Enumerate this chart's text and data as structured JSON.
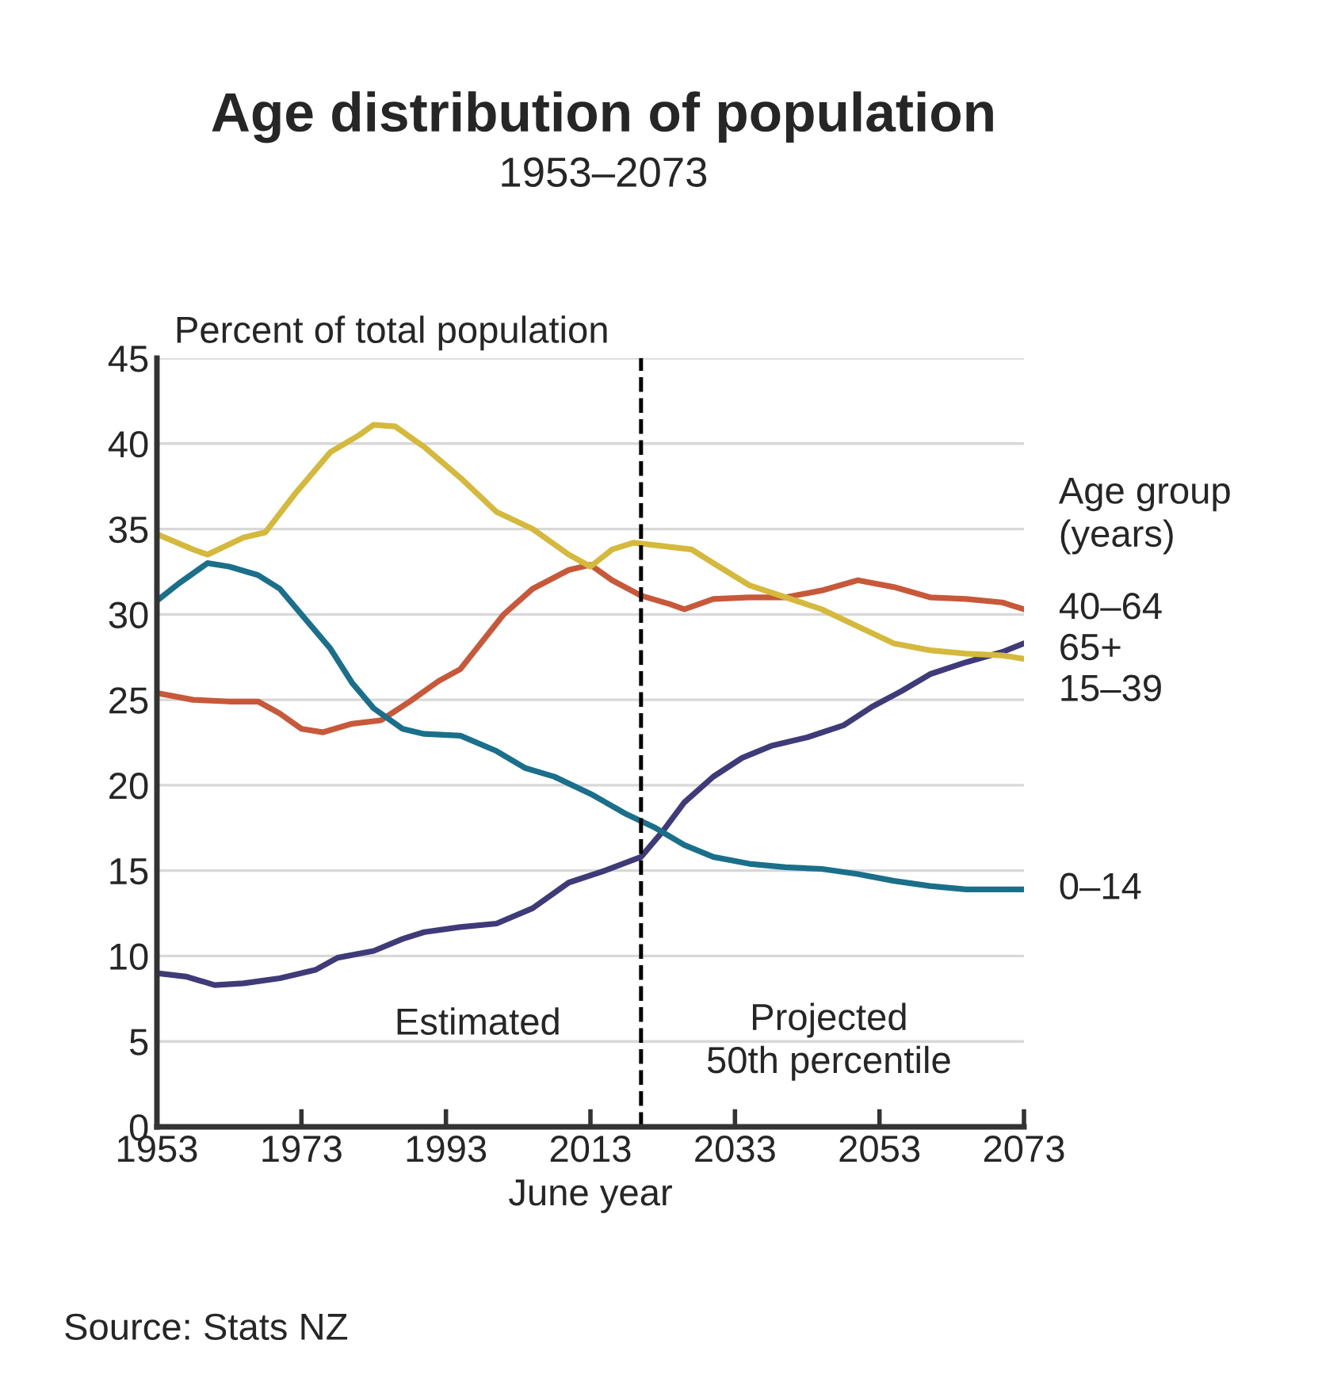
{
  "chart_data": {
    "type": "line",
    "title": "Age distribution of population",
    "subtitle": "1953–2073",
    "ylabel": "Percent of total population",
    "xlabel": "June year",
    "legend_title": "Age group\n(years)",
    "legend": "right",
    "grid": "y",
    "line_style": "solid",
    "xlim": [
      1953,
      2073
    ],
    "xticks": [
      1953,
      1973,
      1993,
      2013,
      2033,
      2053,
      2073
    ],
    "ylim": [
      0,
      45
    ],
    "yticks": [
      0,
      5,
      10,
      15,
      20,
      25,
      30,
      35,
      40,
      45
    ],
    "ref_lines": [
      {
        "axis": "x",
        "value": 2020,
        "color": "#000000",
        "line_style": "dashed"
      }
    ],
    "annotations": [
      "Estimated",
      "Projected\n50th percentile",
      "Source: Stats NZ"
    ],
    "series": [
      {
        "name": "40–64",
        "color": "#c8583a",
        "x": [
          1953,
          1958,
          1963,
          1967,
          1970,
          1973,
          1976,
          1980,
          1984,
          1988,
          1992,
          1995,
          1998,
          2001,
          2005,
          2010,
          2013,
          2016,
          2020,
          2024,
          2026,
          2030,
          2035,
          2040,
          2045,
          2050,
          2055,
          2060,
          2065,
          2070,
          2073
        ],
        "values": [
          25.4,
          25.0,
          24.9,
          24.9,
          24.2,
          23.3,
          23.1,
          23.6,
          23.8,
          24.9,
          26.1,
          26.8,
          28.4,
          30.0,
          31.5,
          32.6,
          32.9,
          32.0,
          31.1,
          30.6,
          30.3,
          30.9,
          31.0,
          31.0,
          31.4,
          32.0,
          31.6,
          31.0,
          30.9,
          30.7,
          30.3
        ]
      },
      {
        "name": "65+",
        "color": "#3f3a78",
        "x": [
          1953,
          1957,
          1961,
          1965,
          1970,
          1975,
          1978,
          1983,
          1987,
          1990,
          1995,
          2000,
          2005,
          2010,
          2015,
          2020,
          2023,
          2026,
          2030,
          2034,
          2038,
          2043,
          2048,
          2052,
          2056,
          2060,
          2065,
          2070,
          2073
        ],
        "values": [
          9.0,
          8.8,
          8.3,
          8.4,
          8.7,
          9.2,
          9.9,
          10.3,
          11.0,
          11.4,
          11.7,
          11.9,
          12.8,
          14.3,
          15.0,
          15.8,
          17.3,
          19.0,
          20.5,
          21.6,
          22.3,
          22.8,
          23.5,
          24.6,
          25.5,
          26.5,
          27.2,
          27.8,
          28.3
        ]
      },
      {
        "name": "15–39",
        "color": "#d4b93c",
        "x": [
          1953,
          1958,
          1960,
          1965,
          1968,
          1972,
          1977,
          1981,
          1983,
          1986,
          1990,
          1995,
          2000,
          2005,
          2010,
          2013,
          2016,
          2019,
          2023,
          2027,
          2030,
          2035,
          2040,
          2045,
          2050,
          2055,
          2060,
          2065,
          2070,
          2073
        ],
        "values": [
          34.7,
          33.8,
          33.5,
          34.5,
          34.8,
          37.0,
          39.5,
          40.5,
          41.1,
          41.0,
          39.8,
          38.0,
          36.0,
          35.0,
          33.5,
          32.8,
          33.8,
          34.2,
          34.0,
          33.8,
          33.0,
          31.7,
          31.0,
          30.3,
          29.3,
          28.3,
          27.9,
          27.7,
          27.6,
          27.4
        ]
      },
      {
        "name": "0–14",
        "color": "#1a6f8a",
        "x": [
          1953,
          1956,
          1960,
          1963,
          1967,
          1970,
          1973,
          1977,
          1980,
          1983,
          1987,
          1990,
          1995,
          2000,
          2004,
          2008,
          2013,
          2018,
          2022,
          2026,
          2030,
          2035,
          2040,
          2045,
          2050,
          2055,
          2060,
          2065,
          2073
        ],
        "values": [
          30.8,
          31.8,
          33.0,
          32.8,
          32.3,
          31.5,
          30.0,
          28.0,
          26.0,
          24.5,
          23.3,
          23.0,
          22.9,
          22.0,
          21.0,
          20.5,
          19.5,
          18.3,
          17.5,
          16.5,
          15.8,
          15.4,
          15.2,
          15.1,
          14.8,
          14.4,
          14.1,
          13.9,
          13.9
        ]
      }
    ]
  }
}
